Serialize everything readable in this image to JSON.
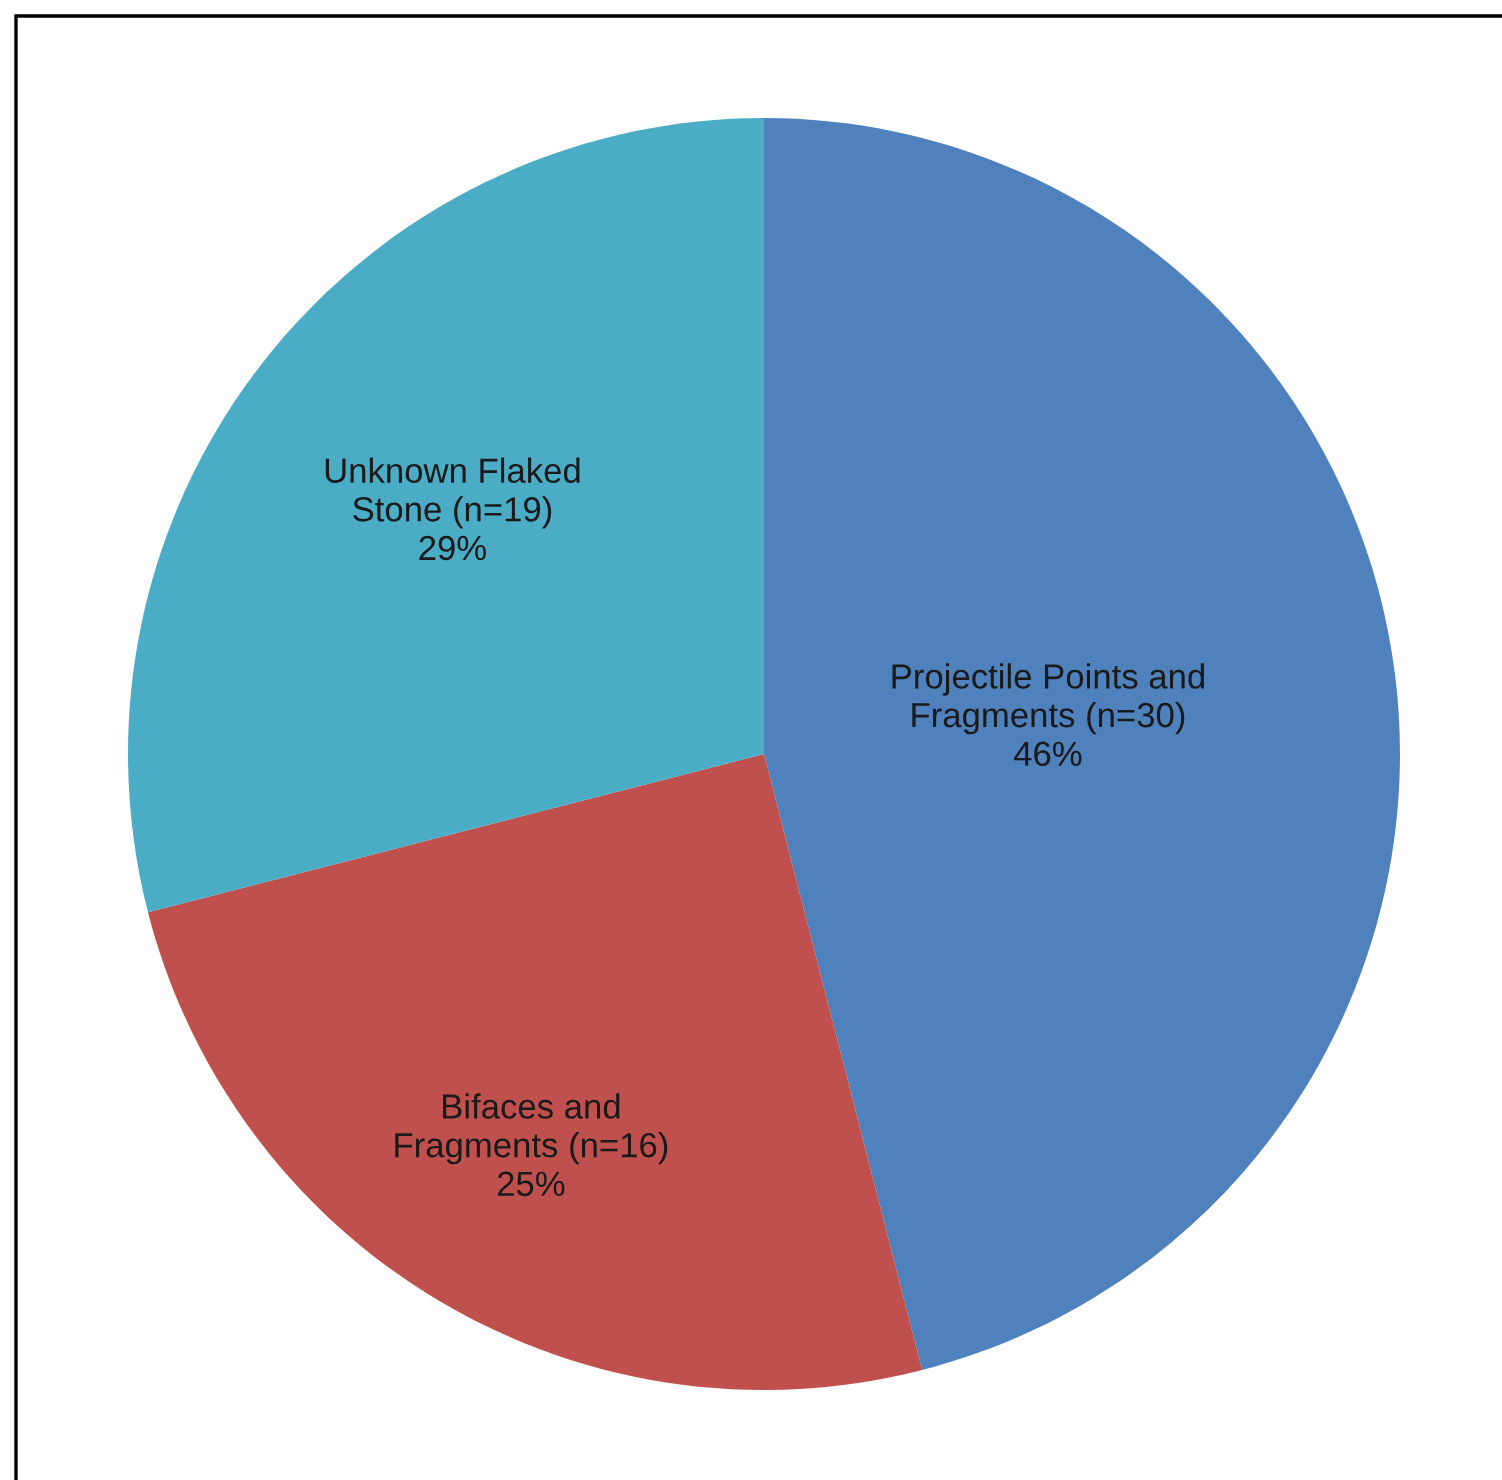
{
  "chart_data": {
    "type": "pie",
    "categories": [
      "Projectile Points and\nFragments (n=30)",
      "Bifaces and\nFragments (n=16)",
      "Unknown Flaked\nStone (n=19)"
    ],
    "values": [
      46,
      25,
      29
    ],
    "value_labels": [
      "46%",
      "25%",
      "29%"
    ],
    "colors": [
      "#4f81bd",
      "#c0504d",
      "#4bacc6"
    ],
    "legend": false
  }
}
